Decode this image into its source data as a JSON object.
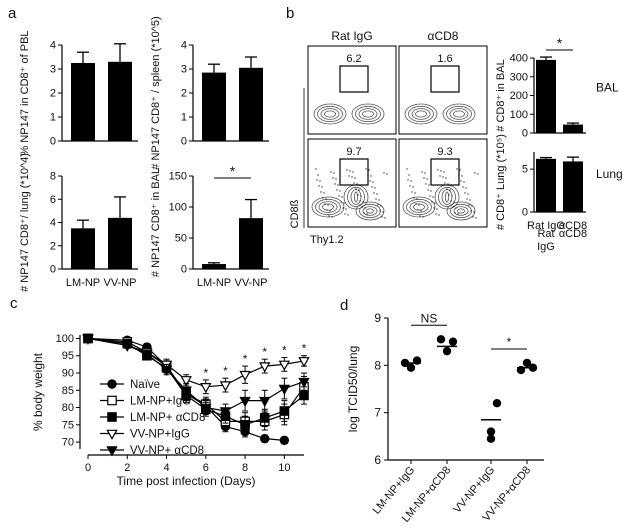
{
  "panel_labels": {
    "a": "a",
    "b": "b",
    "c": "c",
    "d": "d"
  },
  "chart_data": [
    {
      "panel": "a",
      "type": "bar",
      "ylabel": "% NP147 in CD8⁺ of PBL",
      "categories": [
        "LM-NP",
        "VV-NP"
      ],
      "show_categories": false,
      "values": [
        3.25,
        3.3
      ],
      "errors": [
        0.45,
        0.75
      ],
      "ylim": [
        0,
        4
      ],
      "yticks": [
        "0",
        "1",
        "2",
        "3",
        "4"
      ],
      "ytick_values": [
        0,
        1,
        2,
        3,
        4
      ]
    },
    {
      "panel": "a",
      "type": "bar",
      "ylabel": "# NP147 CD8⁺ / spleen (*10^5)",
      "categories": [
        "LM-NP",
        "VV-NP"
      ],
      "show_categories": false,
      "values": [
        2.85,
        3.05
      ],
      "errors": [
        0.35,
        0.45
      ],
      "ylim": [
        0,
        4
      ],
      "yticks": [
        "0",
        "1",
        "2",
        "3",
        "4"
      ],
      "ytick_values": [
        0,
        1,
        2,
        3,
        4
      ]
    },
    {
      "panel": "a",
      "type": "bar",
      "ylabel": "# NP147 CD8⁺/ lung (*10^4)",
      "categories": [
        "LM-NP",
        "VV-NP"
      ],
      "show_categories": true,
      "values": [
        3.5,
        4.4
      ],
      "errors": [
        0.7,
        1.8
      ],
      "ylim": [
        0,
        8
      ],
      "yticks": [
        "0",
        "2",
        "4",
        "6",
        "8"
      ],
      "ytick_values": [
        0,
        2,
        4,
        6,
        8
      ]
    },
    {
      "panel": "a",
      "type": "bar",
      "ylabel": "# NP147 CD8⁺ in BAL",
      "categories": [
        "LM-NP",
        "VV-NP"
      ],
      "show_categories": true,
      "values": [
        8,
        82
      ],
      "errors": [
        2,
        30
      ],
      "ylim": [
        0,
        150
      ],
      "yticks": [
        "0",
        "50",
        "100",
        "150"
      ],
      "ytick_values": [
        0,
        50,
        100,
        150
      ],
      "significance": "*"
    },
    {
      "panel": "b",
      "type": "bar",
      "ylabel": "# CD8⁺ in BAL",
      "categories": [
        "Rat IgG",
        "αCD8"
      ],
      "show_categories": false,
      "values": [
        390,
        45
      ],
      "errors": [
        15,
        8
      ],
      "ylim": [
        0,
        400
      ],
      "yticks": [
        "0",
        "100",
        "200",
        "300",
        "400"
      ],
      "ytick_values": [
        0,
        100,
        200,
        300,
        400
      ],
      "significance": "*",
      "side_label": "BAL"
    },
    {
      "panel": "b",
      "type": "bar",
      "ylabel": "# CD8⁺ Lung (*10⁵)",
      "categories": [
        "Rat IgG",
        "αCD8"
      ],
      "show_categories": true,
      "values": [
        6.2,
        5.9
      ],
      "errors": [
        0.15,
        0.5
      ],
      "ylim": [
        0,
        7
      ],
      "yticks": [
        "0",
        "5"
      ],
      "ytick_values": [
        0,
        5
      ],
      "side_label": "Lung"
    },
    {
      "panel": "b",
      "type": "flow-contour",
      "column_headers": [
        "Rat IgG",
        "αCD8"
      ],
      "gate_values": [
        "6.2",
        "1.6",
        "9.7",
        "9.3"
      ],
      "ylabel": "CD8ß",
      "xlabel": "Thy1.2"
    },
    {
      "panel": "c",
      "type": "line",
      "xlabel": "Time post infection (Days)",
      "ylabel": "% body weight",
      "xlim": [
        0,
        11
      ],
      "xticks": [
        "0",
        "2",
        "4",
        "6",
        "8",
        "10"
      ],
      "xtick_values": [
        0,
        2,
        4,
        6,
        8,
        10
      ],
      "ylim": [
        68,
        101
      ],
      "yticks": [
        "70",
        "75",
        "80",
        "85",
        "90",
        "95",
        "100"
      ],
      "ytick_values": [
        70,
        75,
        80,
        85,
        90,
        95,
        100
      ],
      "x": [
        0,
        2,
        3,
        4,
        5,
        6,
        7,
        8,
        9,
        10,
        11
      ],
      "series": [
        {
          "name": "Naïve",
          "marker": "circle-filled",
          "values": [
            100,
            99.5,
            97.5,
            92,
            84,
            80.5,
            74.5,
            73,
            71,
            70.5,
            null
          ],
          "errors": [
            0.5,
            0.8,
            1,
            1.5,
            1.5,
            2,
            1.5,
            1.5,
            1,
            1,
            0
          ]
        },
        {
          "name": "LM-NP+IgG",
          "marker": "square-open",
          "values": [
            100,
            99,
            96,
            92,
            84,
            81,
            76,
            76,
            76,
            78,
            86
          ],
          "errors": [
            0.5,
            0.8,
            1,
            1.5,
            2,
            2,
            2,
            2.5,
            2.5,
            3,
            3
          ]
        },
        {
          "name": "LM-NP+ αCD8",
          "marker": "square-filled",
          "values": [
            100,
            98.5,
            95,
            91.5,
            83.5,
            79.5,
            77.5,
            75,
            77,
            79,
            83.5
          ],
          "errors": [
            0.5,
            0.8,
            1,
            1.5,
            2,
            2,
            2,
            2.5,
            2.5,
            3,
            2.5
          ]
        },
        {
          "name": "VV-NP+IgG",
          "marker": "triangle-down-open",
          "values": [
            100,
            98,
            96,
            92.5,
            88,
            86,
            86.5,
            89.5,
            92,
            92.5,
            93.5
          ],
          "errors": [
            0.5,
            0.8,
            1,
            1.5,
            1.5,
            2,
            2,
            2.5,
            2,
            2,
            1.5
          ]
        },
        {
          "name": "VV-NP+ αCD8",
          "marker": "triangle-down-filled",
          "values": [
            100,
            98,
            95.5,
            91,
            85,
            80,
            79,
            82,
            82,
            85.5,
            87.5
          ],
          "errors": [
            0.5,
            0.8,
            1,
            1.5,
            2,
            2,
            2,
            3,
            3,
            3,
            2.5
          ]
        }
      ],
      "significance_days": [
        6,
        7,
        8,
        9,
        10,
        11
      ],
      "significance": "*"
    },
    {
      "panel": "d",
      "type": "scatter",
      "ylabel": "log TCID50/lung",
      "categories": [
        "LM-NP+IgG",
        "LM-NP+αCD8",
        "VV-NP+IgG",
        "VV-NP+αCD8"
      ],
      "ylim": [
        6,
        9
      ],
      "yticks": [
        "6",
        "7",
        "8",
        "9"
      ],
      "ytick_values": [
        6,
        7,
        8,
        9
      ],
      "points": [
        [
          8.05,
          7.95,
          8.1
        ],
        [
          8.55,
          8.3,
          8.5
        ],
        [
          7.2,
          6.6,
          6.45
        ],
        [
          7.9,
          8.05,
          7.95
        ]
      ],
      "means": [
        8.05,
        8.4,
        6.85,
        7.95
      ],
      "comparisons": [
        {
          "from": 0,
          "to": 1,
          "label": "NS"
        },
        {
          "from": 2,
          "to": 3,
          "label": "*"
        }
      ]
    }
  ]
}
